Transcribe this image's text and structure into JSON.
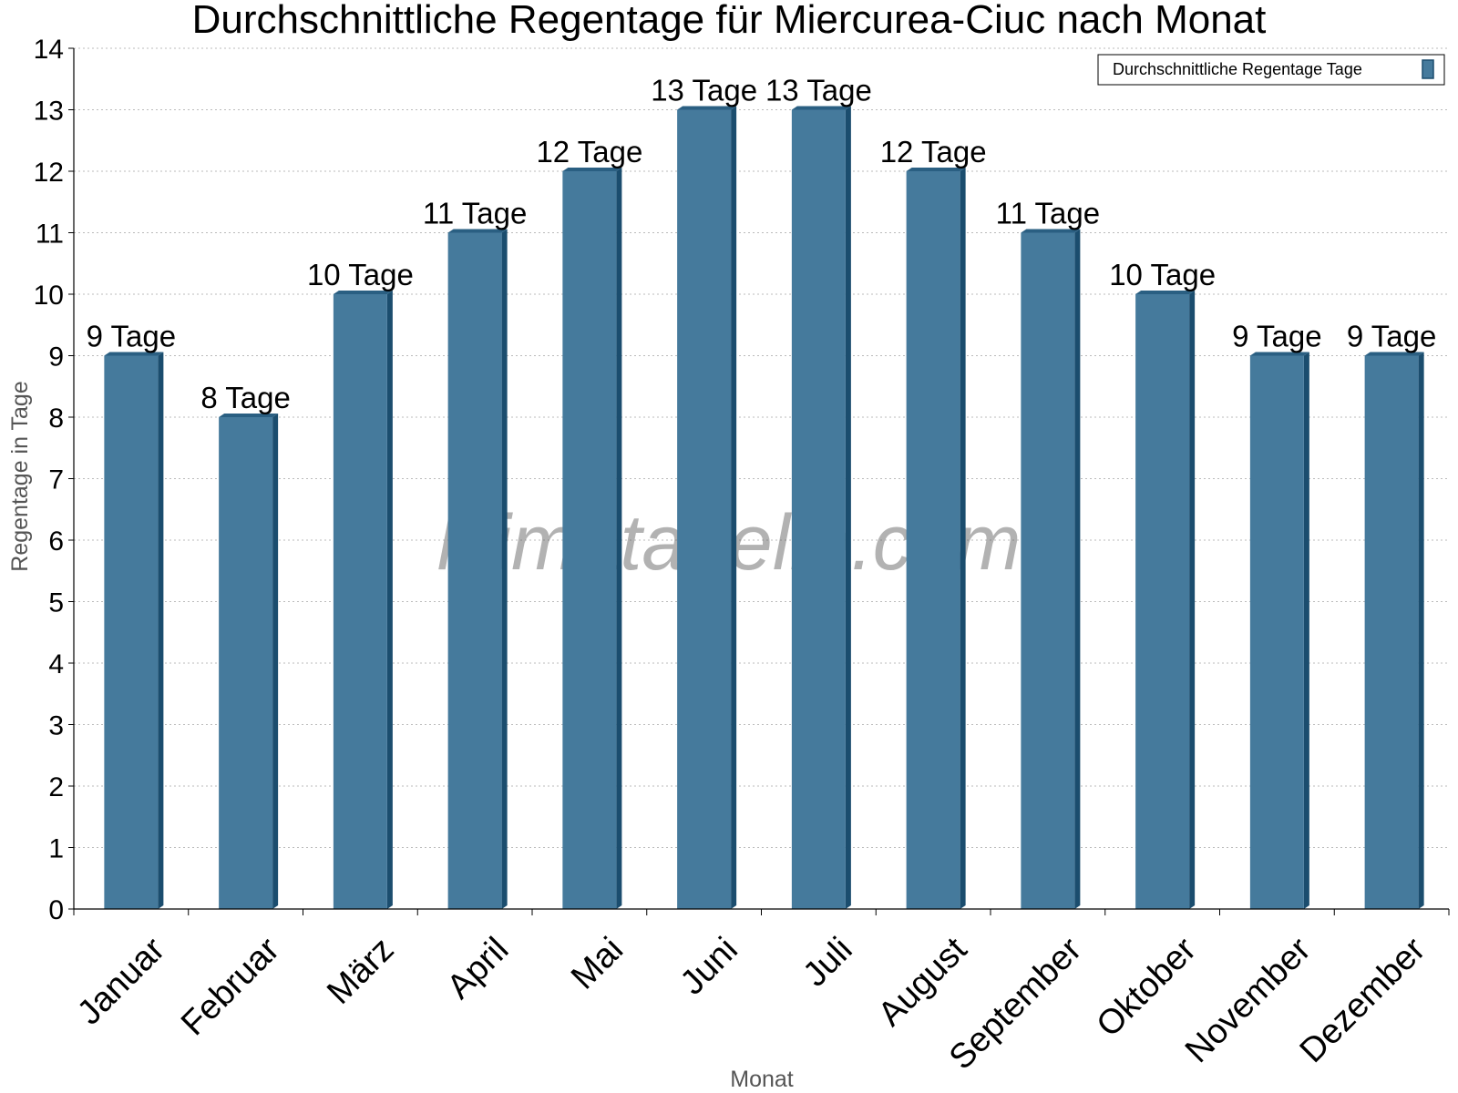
{
  "chart_data": {
    "type": "bar",
    "title": "Durchschnittliche Regentage für Miercurea-Ciuc nach Monat",
    "xlabel": "Monat",
    "ylabel": "Regentage in Tage",
    "categories": [
      "Januar",
      "Februar",
      "März",
      "April",
      "Mai",
      "Juni",
      "Juli",
      "August",
      "September",
      "Oktober",
      "November",
      "Dezember"
    ],
    "series": [
      {
        "name": "Durchschnittliche Regentage Tage",
        "values": [
          9,
          8,
          10,
          11,
          12,
          13,
          13,
          12,
          11,
          10,
          9,
          9
        ],
        "data_labels": [
          "9 Tage",
          "8 Tage",
          "10 Tage",
          "11 Tage",
          "12 Tage",
          "13 Tage",
          "13 Tage",
          "12 Tage",
          "11 Tage",
          "10 Tage",
          "9 Tage",
          "9 Tage"
        ],
        "color": "#457a9c"
      }
    ],
    "ylim": [
      0,
      14
    ],
    "yticks": [
      0,
      1,
      2,
      3,
      4,
      5,
      6,
      7,
      8,
      9,
      10,
      11,
      12,
      13,
      14
    ],
    "grid": true,
    "legend_position": "top-right",
    "watermark": "klimatabelle.com"
  },
  "colors": {
    "bar_face": "#457a9c",
    "bar_side": "#1b4d6e",
    "bar_top": "#2a5f82",
    "grid": "#bbbbbb",
    "axis": "#000000"
  }
}
